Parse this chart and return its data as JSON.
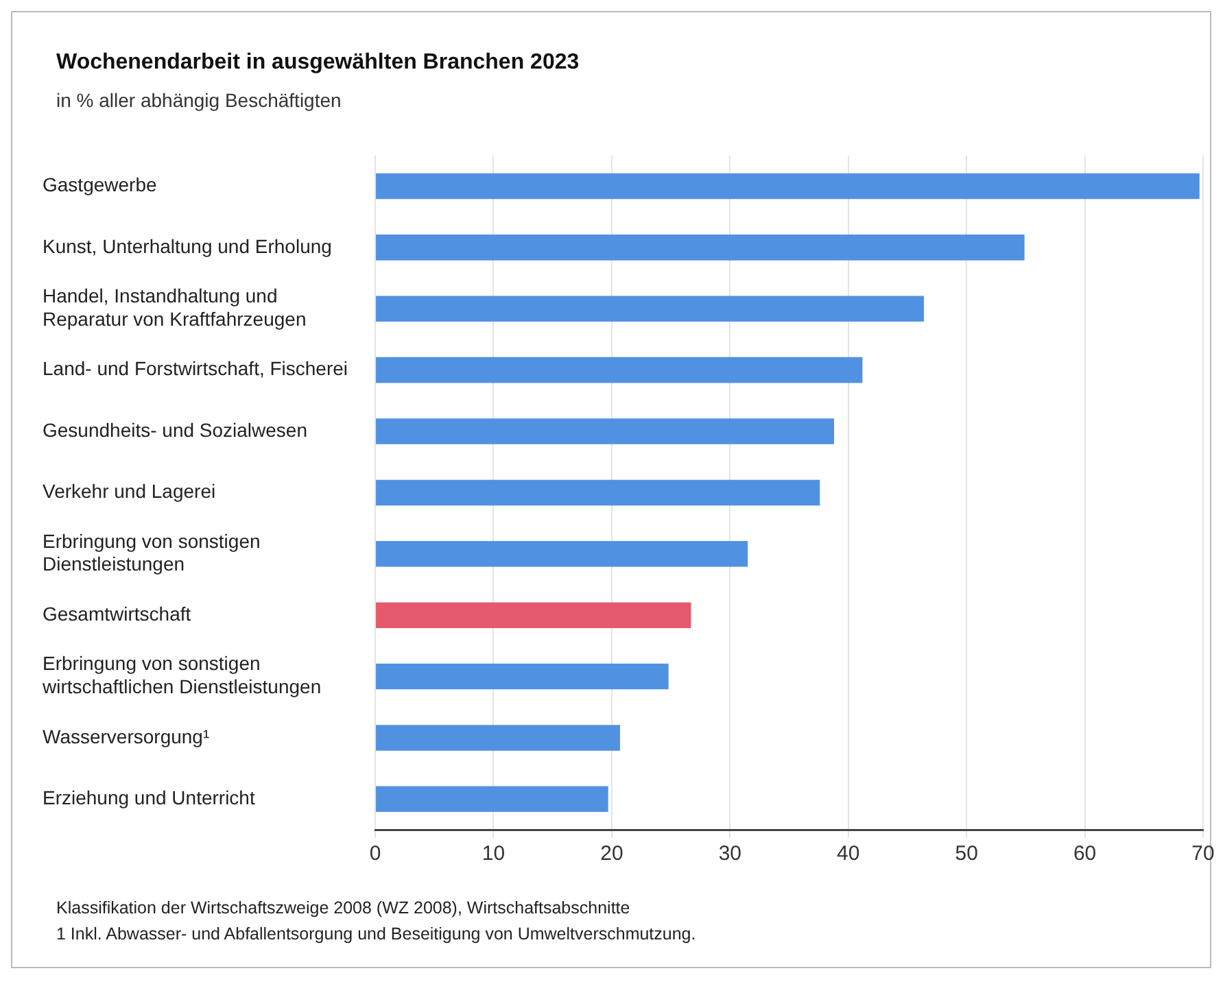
{
  "chart_data": {
    "type": "bar",
    "orientation": "horizontal",
    "title": "Wochenendarbeit in ausgewählten Branchen 2023",
    "subtitle": "in % aller abhängig Beschäftigten",
    "categories": [
      "Gastgewerbe",
      "Kunst, Unterhaltung und Erholung",
      "Handel, Instandhaltung und Reparatur von Kraftfahrzeugen",
      "Land- und Forstwirtschaft, Fischerei",
      "Gesundheits- und Sozialwesen",
      "Verkehr und Lagerei",
      "Erbringung von sonstigen Dienstleistungen",
      "Gesamtwirtschaft",
      "Erbringung von sonstigen wirtschaftlichen Dienstleistungen",
      "Wasserversorgung¹",
      "Erziehung und Unterricht"
    ],
    "values": [
      69.7,
      54.9,
      46.4,
      41.2,
      38.8,
      37.6,
      31.5,
      26.7,
      24.8,
      20.7,
      19.7
    ],
    "colors": [
      "#5191e2",
      "#5191e2",
      "#5191e2",
      "#5191e2",
      "#5191e2",
      "#5191e2",
      "#5191e2",
      "#e5596c",
      "#5191e2",
      "#5191e2",
      "#5191e2"
    ],
    "xlim": [
      0,
      70
    ],
    "xticks": [
      0,
      10,
      20,
      30,
      40,
      50,
      60,
      70
    ],
    "grid": "x",
    "legend": false,
    "annotations": [
      "Klassifikation der Wirtschaftszweige 2008 (WZ 2008), Wirtschaftsabschnitte",
      "1 Inkl. Abwasser- und Abfallentsorgung und Beseitigung von Umweltverschmutzung."
    ]
  }
}
